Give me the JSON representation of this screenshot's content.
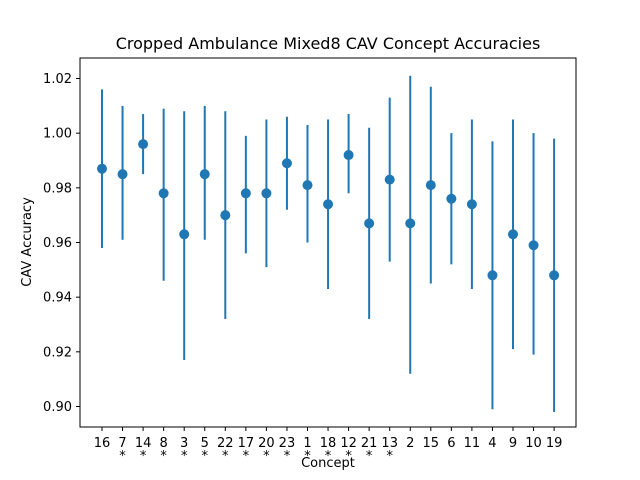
{
  "chart_data": {
    "type": "scatter",
    "title": "Cropped Ambulance Mixed8 CAV Concept Accuracies",
    "xlabel": "Concept",
    "ylabel": "CAV Accuracy",
    "ylim": [
      0.8925,
      1.0275
    ],
    "yticks": [
      "0.90",
      "0.92",
      "0.94",
      "0.96",
      "0.98",
      "1.00",
      "1.02"
    ],
    "grid": false,
    "point_color": "#1f77b4",
    "categories": [
      "16",
      "7",
      "14",
      "8",
      "3",
      "5",
      "22",
      "17",
      "20",
      "23",
      "1",
      "18",
      "12",
      "21",
      "13",
      "2",
      "15",
      "6",
      "11",
      "4",
      "9",
      "10",
      "19"
    ],
    "significance_marks": [
      "",
      "*",
      "*",
      "*",
      "*",
      "*",
      "*",
      "*",
      "*",
      "*",
      "*",
      "*",
      "*",
      "*",
      "*",
      "",
      "",
      "",
      "",
      "",
      "",
      "",
      ""
    ],
    "values": [
      0.987,
      0.985,
      0.996,
      0.978,
      0.963,
      0.985,
      0.97,
      0.978,
      0.978,
      0.989,
      0.981,
      0.974,
      0.992,
      0.967,
      0.983,
      0.967,
      0.981,
      0.976,
      0.974,
      0.948,
      0.963,
      0.959,
      0.948
    ],
    "error_low": [
      0.958,
      0.961,
      0.985,
      0.946,
      0.917,
      0.961,
      0.932,
      0.956,
      0.951,
      0.972,
      0.96,
      0.943,
      0.978,
      0.932,
      0.953,
      0.912,
      0.945,
      0.952,
      0.943,
      0.899,
      0.921,
      0.919,
      0.898
    ],
    "error_high": [
      1.016,
      1.01,
      1.007,
      1.009,
      1.008,
      1.01,
      1.008,
      0.999,
      1.005,
      1.006,
      1.003,
      1.005,
      1.007,
      1.002,
      1.013,
      1.021,
      1.017,
      1.0,
      1.005,
      0.997,
      1.005,
      1.0,
      0.998
    ]
  }
}
